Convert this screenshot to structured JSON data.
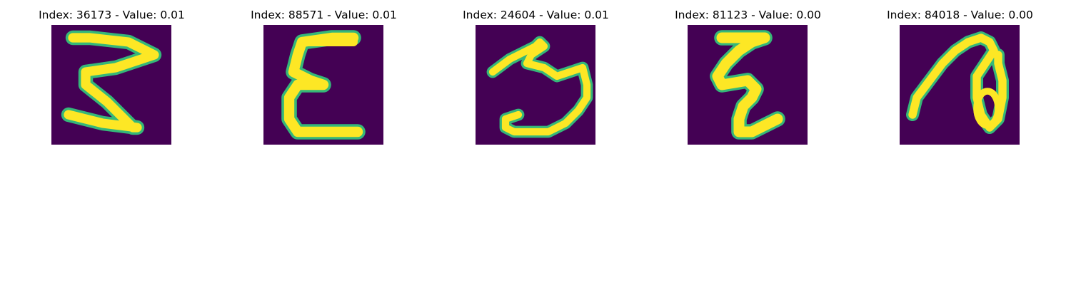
{
  "panels": [
    {
      "title": "Index: 36173 - Value: 0.01",
      "glyph": "zigzag-three"
    },
    {
      "title": "Index: 88571 - Value: 0.01",
      "glyph": "epsilon"
    },
    {
      "title": "Index: 24604 - Value: 0.01",
      "glyph": "three"
    },
    {
      "title": "Index: 81123 - Value: 0.00",
      "glyph": "zigzag-z"
    },
    {
      "title": "Index: 84018 - Value: 0.00",
      "glyph": "loop-seven"
    }
  ],
  "colors": {
    "background": "#440154",
    "stroke_outer": "#35b779",
    "stroke_inner": "#fde725"
  }
}
